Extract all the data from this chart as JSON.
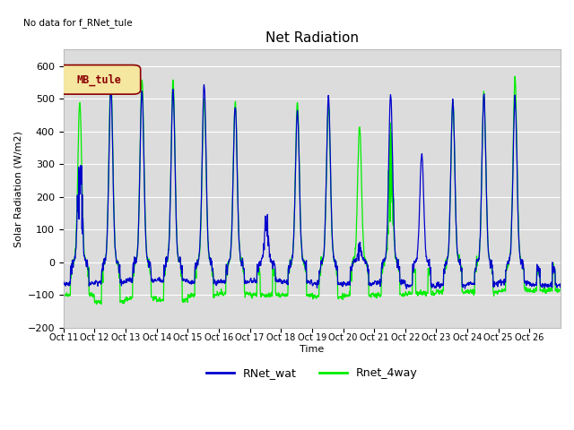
{
  "title": "Net Radiation",
  "xlabel": "Time",
  "ylabel": "Solar Radiation (W/m2)",
  "ylim": [
    -200,
    650
  ],
  "yticks": [
    -200,
    -100,
    0,
    100,
    200,
    300,
    400,
    500,
    600
  ],
  "xtick_labels": [
    "Oct 11",
    "Oct 12",
    "Oct 13",
    "Oct 14",
    "Oct 15",
    "Oct 16",
    "Oct 17",
    "Oct 18",
    "Oct 19",
    "Oct 20",
    "Oct 21",
    "Oct 22",
    "Oct 23",
    "Oct 24",
    "Oct 25",
    "Oct 26"
  ],
  "no_data_text": "No data for f_RNet_tule",
  "legend_box_label": "MB_tule",
  "legend_box_color": "#f5e6a0",
  "legend_box_border": "#8b0000",
  "line1_color": "#0000cc",
  "line2_color": "#00ee00",
  "line1_label": "RNet_wat",
  "line2_label": "Rnet_4way",
  "background_color": "#dcdcdc",
  "grid_color": "white",
  "num_days": 16,
  "points_per_day": 96,
  "day_params": [
    {
      "b_peak": 340,
      "g_peak": 490,
      "b_cloudy": true,
      "g_cloudy": false,
      "b_night": -65,
      "g_night": -100
    },
    {
      "b_peak": 530,
      "g_peak": 570,
      "b_cloudy": false,
      "g_cloudy": false,
      "b_night": -60,
      "g_night": -120
    },
    {
      "b_peak": 525,
      "g_peak": 560,
      "b_cloudy": false,
      "g_cloudy": false,
      "b_night": -55,
      "g_night": -110
    },
    {
      "b_peak": 525,
      "g_peak": 555,
      "b_cloudy": false,
      "g_cloudy": false,
      "b_night": -55,
      "g_night": -115
    },
    {
      "b_peak": 545,
      "g_peak": 500,
      "b_cloudy": false,
      "g_cloudy": false,
      "b_night": -60,
      "g_night": -100
    },
    {
      "b_peak": 480,
      "g_peak": 490,
      "b_cloudy": false,
      "g_cloudy": false,
      "b_night": -60,
      "g_night": -95
    },
    {
      "b_peak": 120,
      "g_peak": 0,
      "b_cloudy": true,
      "g_cloudy": true,
      "b_night": -55,
      "g_night": -100
    },
    {
      "b_peak": 460,
      "g_peak": 490,
      "b_cloudy": false,
      "g_cloudy": false,
      "b_night": -60,
      "g_night": -100
    },
    {
      "b_peak": 505,
      "g_peak": 480,
      "b_cloudy": false,
      "g_cloudy": false,
      "b_night": -65,
      "g_night": -105
    },
    {
      "b_peak": 50,
      "g_peak": 415,
      "b_cloudy": true,
      "g_cloudy": false,
      "b_night": -65,
      "g_night": -100
    },
    {
      "b_peak": 515,
      "g_peak": 325,
      "b_cloudy": false,
      "g_cloudy": true,
      "b_night": -60,
      "g_night": -100
    },
    {
      "b_peak": 330,
      "g_peak": 0,
      "b_cloudy": false,
      "g_cloudy": true,
      "b_night": -70,
      "g_night": -95
    },
    {
      "b_peak": 500,
      "g_peak": 490,
      "b_cloudy": false,
      "g_cloudy": false,
      "b_night": -70,
      "g_night": -90
    },
    {
      "b_peak": 515,
      "g_peak": 520,
      "b_cloudy": false,
      "g_cloudy": false,
      "b_night": -65,
      "g_night": -90
    },
    {
      "b_peak": 505,
      "g_peak": 565,
      "b_cloudy": false,
      "g_cloudy": false,
      "b_night": -60,
      "g_night": -85
    },
    {
      "b_peak": 0,
      "g_peak": 0,
      "b_cloudy": true,
      "g_cloudy": true,
      "b_night": -70,
      "g_night": -85
    }
  ]
}
